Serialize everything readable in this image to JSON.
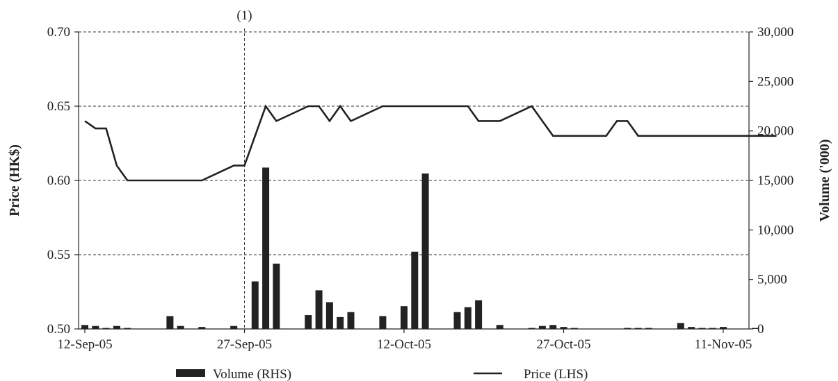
{
  "chart_data": {
    "type": "bar+line",
    "x_tick_labels": [
      "12-Sep-05",
      "27-Sep-05",
      "12-Oct-05",
      "27-Oct-05",
      "11-Nov-05"
    ],
    "y_left": {
      "label": "Price (HK$)",
      "ticks": [
        "0.50",
        "0.55",
        "0.60",
        "0.65",
        "0.70"
      ],
      "range": [
        0.5,
        0.7
      ]
    },
    "y_right": {
      "label": "Volume ('000)",
      "ticks": [
        "0",
        "5,000",
        "10,000",
        "15,000",
        "20,000",
        "25,000",
        "30,000"
      ],
      "range": [
        0,
        30000
      ]
    },
    "annotation": "(1)",
    "grid": "horizontal dashed",
    "legend_position": "bottom",
    "colors": {
      "bars": "#222222",
      "line": "#222222"
    },
    "series": [
      {
        "name": "Volume (RHS)",
        "type": "bar",
        "axis": "right",
        "points": [
          [
            "2005-09-12",
            400
          ],
          [
            "2005-09-13",
            300
          ],
          [
            "2005-09-14",
            100
          ],
          [
            "2005-09-15",
            300
          ],
          [
            "2005-09-16",
            100
          ],
          [
            "2005-09-20",
            1300
          ],
          [
            "2005-09-21",
            300
          ],
          [
            "2005-09-23",
            200
          ],
          [
            "2005-09-26",
            300
          ],
          [
            "2005-09-28",
            4800
          ],
          [
            "2005-09-29",
            16300
          ],
          [
            "2005-09-30",
            6600
          ],
          [
            "2005-10-03",
            1400
          ],
          [
            "2005-10-04",
            3900
          ],
          [
            "2005-10-05",
            2700
          ],
          [
            "2005-10-06",
            1200
          ],
          [
            "2005-10-07",
            1700
          ],
          [
            "2005-10-10",
            1300
          ],
          [
            "2005-10-12",
            2300
          ],
          [
            "2005-10-13",
            7800
          ],
          [
            "2005-10-14",
            15700
          ],
          [
            "2005-10-17",
            1700
          ],
          [
            "2005-10-18",
            2200
          ],
          [
            "2005-10-19",
            2900
          ],
          [
            "2005-10-21",
            400
          ],
          [
            "2005-10-24",
            100
          ],
          [
            "2005-10-25",
            300
          ],
          [
            "2005-10-26",
            400
          ],
          [
            "2005-10-27",
            200
          ],
          [
            "2005-10-28",
            100
          ],
          [
            "2005-11-02",
            100
          ],
          [
            "2005-11-03",
            100
          ],
          [
            "2005-11-04",
            100
          ],
          [
            "2005-11-07",
            600
          ],
          [
            "2005-11-08",
            200
          ],
          [
            "2005-11-09",
            100
          ],
          [
            "2005-11-10",
            100
          ],
          [
            "2005-11-11",
            200
          ],
          [
            "2005-11-14",
            100
          ]
        ]
      },
      {
        "name": "Price (LHS)",
        "type": "line",
        "axis": "left",
        "points": [
          [
            "2005-09-12",
            0.64
          ],
          [
            "2005-09-13",
            0.635
          ],
          [
            "2005-09-14",
            0.635
          ],
          [
            "2005-09-15",
            0.61
          ],
          [
            "2005-09-16",
            0.6
          ],
          [
            "2005-09-19",
            0.6
          ],
          [
            "2005-09-20",
            0.6
          ],
          [
            "2005-09-21",
            0.6
          ],
          [
            "2005-09-22",
            0.6
          ],
          [
            "2005-09-23",
            0.6
          ],
          [
            "2005-09-26",
            0.61
          ],
          [
            "2005-09-27",
            0.61
          ],
          [
            "2005-09-28",
            0.63
          ],
          [
            "2005-09-29",
            0.65
          ],
          [
            "2005-09-30",
            0.64
          ],
          [
            "2005-10-03",
            0.65
          ],
          [
            "2005-10-04",
            0.65
          ],
          [
            "2005-10-05",
            0.64
          ],
          [
            "2005-10-06",
            0.65
          ],
          [
            "2005-10-07",
            0.64
          ],
          [
            "2005-10-10",
            0.65
          ],
          [
            "2005-10-11",
            0.65
          ],
          [
            "2005-10-12",
            0.65
          ],
          [
            "2005-10-13",
            0.65
          ],
          [
            "2005-10-14",
            0.65
          ],
          [
            "2005-10-17",
            0.65
          ],
          [
            "2005-10-18",
            0.65
          ],
          [
            "2005-10-19",
            0.64
          ],
          [
            "2005-10-20",
            0.64
          ],
          [
            "2005-10-21",
            0.64
          ],
          [
            "2005-10-24",
            0.65
          ],
          [
            "2005-10-25",
            0.64
          ],
          [
            "2005-10-26",
            0.63
          ],
          [
            "2005-10-27",
            0.63
          ],
          [
            "2005-10-28",
            0.63
          ],
          [
            "2005-10-31",
            0.63
          ],
          [
            "2005-11-01",
            0.64
          ],
          [
            "2005-11-02",
            0.64
          ],
          [
            "2005-11-03",
            0.63
          ],
          [
            "2005-11-04",
            0.63
          ],
          [
            "2005-11-07",
            0.63
          ],
          [
            "2005-11-08",
            0.63
          ],
          [
            "2005-11-09",
            0.63
          ],
          [
            "2005-11-10",
            0.63
          ],
          [
            "2005-11-11",
            0.63
          ],
          [
            "2005-11-14",
            0.63
          ],
          [
            "2005-11-15",
            0.63
          ],
          [
            "2005-11-16",
            0.63
          ]
        ]
      }
    ]
  }
}
